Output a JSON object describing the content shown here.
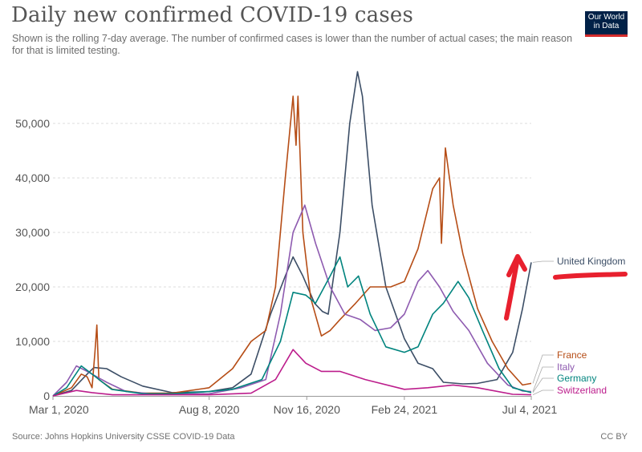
{
  "header": {
    "title": "Daily new confirmed COVID-19 cases",
    "subtitle": "Shown is the rolling 7-day average. The number of confirmed cases is lower than the number of actual cases; the main reason for that is limited testing.",
    "logo_line1": "Our World",
    "logo_line2": "in Data",
    "logo_color": "#002147"
  },
  "footer": {
    "source": "Source: Johns Hopkins University CSSE COVID-19 Data",
    "license": "CC BY"
  },
  "annotation": {
    "color": "#e8202e",
    "description": "red-arrow-pointing-to-united-kingdom"
  },
  "chart_data": {
    "type": "line",
    "title": "Daily new confirmed COVID-19 cases",
    "xlabel": "",
    "ylabel": "",
    "ylim": [
      0,
      60000
    ],
    "grid": true,
    "x_ticks": [
      "Mar 1, 2020",
      "Aug 8, 2020",
      "Nov 16, 2020",
      "Feb 24, 2021",
      "Jul 4, 2021"
    ],
    "y_ticks": [
      "0",
      "10,000",
      "20,000",
      "30,000",
      "40,000",
      "50,000"
    ],
    "y_tick_values": [
      0,
      10000,
      20000,
      30000,
      40000,
      50000
    ],
    "x_start": "2020-03-01",
    "x_end": "2021-07-04",
    "series": [
      {
        "name": "United Kingdom",
        "color": "#3c4e66",
        "points": [
          [
            "2020-03-01",
            0
          ],
          [
            "2020-03-20",
            1000
          ],
          [
            "2020-04-05",
            4000
          ],
          [
            "2020-04-12",
            5200
          ],
          [
            "2020-04-25",
            5000
          ],
          [
            "2020-05-10",
            3500
          ],
          [
            "2020-06-01",
            1800
          ],
          [
            "2020-07-01",
            600
          ],
          [
            "2020-08-08",
            800
          ],
          [
            "2020-09-01",
            1500
          ],
          [
            "2020-09-20",
            4000
          ],
          [
            "2020-10-10",
            15000
          ],
          [
            "2020-10-25",
            22000
          ],
          [
            "2020-11-02",
            25500
          ],
          [
            "2020-11-12",
            22000
          ],
          [
            "2020-11-24",
            17000
          ],
          [
            "2020-12-02",
            15500
          ],
          [
            "2020-12-08",
            15000
          ],
          [
            "2020-12-20",
            30000
          ],
          [
            "2020-12-30",
            50000
          ],
          [
            "2021-01-07",
            59500
          ],
          [
            "2021-01-12",
            55000
          ],
          [
            "2021-01-22",
            35000
          ],
          [
            "2021-02-05",
            20000
          ],
          [
            "2021-02-24",
            10500
          ],
          [
            "2021-03-10",
            6000
          ],
          [
            "2021-03-25",
            5000
          ],
          [
            "2021-04-05",
            2500
          ],
          [
            "2021-04-25",
            2200
          ],
          [
            "2021-05-10",
            2300
          ],
          [
            "2021-05-30",
            3000
          ],
          [
            "2021-06-15",
            8000
          ],
          [
            "2021-06-25",
            16000
          ],
          [
            "2021-07-04",
            24500
          ]
        ]
      },
      {
        "name": "France",
        "color": "#b64d16",
        "points": [
          [
            "2020-03-01",
            0
          ],
          [
            "2020-03-20",
            1500
          ],
          [
            "2020-03-30",
            4000
          ],
          [
            "2020-04-05",
            3500
          ],
          [
            "2020-04-10",
            1500
          ],
          [
            "2020-04-13",
            8000
          ],
          [
            "2020-04-15",
            13000
          ],
          [
            "2020-04-17",
            3000
          ],
          [
            "2020-05-01",
            1200
          ],
          [
            "2020-06-01",
            500
          ],
          [
            "2020-07-01",
            500
          ],
          [
            "2020-08-08",
            1500
          ],
          [
            "2020-09-01",
            5000
          ],
          [
            "2020-09-20",
            10000
          ],
          [
            "2020-10-05",
            12000
          ],
          [
            "2020-10-15",
            20000
          ],
          [
            "2020-10-25",
            40000
          ],
          [
            "2020-11-02",
            55000
          ],
          [
            "2020-11-05",
            46000
          ],
          [
            "2020-11-07",
            55000
          ],
          [
            "2020-11-12",
            30000
          ],
          [
            "2020-11-20",
            18000
          ],
          [
            "2020-12-01",
            11000
          ],
          [
            "2020-12-10",
            12000
          ],
          [
            "2020-12-20",
            14000
          ],
          [
            "2021-01-05",
            17000
          ],
          [
            "2021-01-20",
            20000
          ],
          [
            "2021-02-10",
            20000
          ],
          [
            "2021-02-24",
            21000
          ],
          [
            "2021-03-10",
            27000
          ],
          [
            "2021-03-25",
            38000
          ],
          [
            "2021-04-01",
            40000
          ],
          [
            "2021-04-03",
            28000
          ],
          [
            "2021-04-07",
            45500
          ],
          [
            "2021-04-15",
            35000
          ],
          [
            "2021-04-25",
            26000
          ],
          [
            "2021-05-10",
            16000
          ],
          [
            "2021-05-25",
            10000
          ],
          [
            "2021-06-10",
            5000
          ],
          [
            "2021-06-25",
            2000
          ],
          [
            "2021-07-04",
            2300
          ]
        ]
      },
      {
        "name": "Italy",
        "color": "#8e5bb0",
        "points": [
          [
            "2020-03-01",
            0
          ],
          [
            "2020-03-15",
            2500
          ],
          [
            "2020-03-25",
            5500
          ],
          [
            "2020-04-05",
            4500
          ],
          [
            "2020-04-25",
            2500
          ],
          [
            "2020-05-15",
            800
          ],
          [
            "2020-06-15",
            300
          ],
          [
            "2020-08-08",
            400
          ],
          [
            "2020-09-10",
            1500
          ],
          [
            "2020-10-05",
            3000
          ],
          [
            "2020-10-20",
            15000
          ],
          [
            "2020-11-02",
            30000
          ],
          [
            "2020-11-14",
            35000
          ],
          [
            "2020-11-25",
            28000
          ],
          [
            "2020-12-10",
            20000
          ],
          [
            "2020-12-25",
            15000
          ],
          [
            "2021-01-10",
            14000
          ],
          [
            "2021-01-25",
            12000
          ],
          [
            "2021-02-10",
            12500
          ],
          [
            "2021-02-24",
            15000
          ],
          [
            "2021-03-10",
            21000
          ],
          [
            "2021-03-20",
            23000
          ],
          [
            "2021-04-01",
            20000
          ],
          [
            "2021-04-15",
            15500
          ],
          [
            "2021-05-01",
            12000
          ],
          [
            "2021-05-20",
            6000
          ],
          [
            "2021-06-10",
            2000
          ],
          [
            "2021-06-25",
            900
          ],
          [
            "2021-07-04",
            800
          ]
        ]
      },
      {
        "name": "Germany",
        "color": "#00847e",
        "points": [
          [
            "2020-03-01",
            0
          ],
          [
            "2020-03-15",
            1500
          ],
          [
            "2020-03-30",
            5500
          ],
          [
            "2020-04-10",
            4000
          ],
          [
            "2020-04-30",
            1200
          ],
          [
            "2020-06-01",
            400
          ],
          [
            "2020-07-01",
            400
          ],
          [
            "2020-08-08",
            800
          ],
          [
            "2020-09-01",
            1200
          ],
          [
            "2020-10-01",
            3000
          ],
          [
            "2020-10-20",
            10000
          ],
          [
            "2020-11-02",
            19000
          ],
          [
            "2020-11-15",
            18500
          ],
          [
            "2020-11-25",
            17000
          ],
          [
            "2020-12-10",
            22000
          ],
          [
            "2020-12-20",
            25500
          ],
          [
            "2020-12-28",
            20000
          ],
          [
            "2021-01-08",
            22000
          ],
          [
            "2021-01-20",
            15000
          ],
          [
            "2021-02-05",
            9000
          ],
          [
            "2021-02-24",
            8000
          ],
          [
            "2021-03-10",
            9000
          ],
          [
            "2021-03-25",
            15000
          ],
          [
            "2021-04-05",
            17000
          ],
          [
            "2021-04-20",
            21000
          ],
          [
            "2021-05-01",
            18000
          ],
          [
            "2021-05-15",
            12000
          ],
          [
            "2021-06-01",
            5000
          ],
          [
            "2021-06-15",
            1500
          ],
          [
            "2021-07-04",
            600
          ]
        ]
      },
      {
        "name": "Switzerland",
        "color": "#bc1d8c",
        "points": [
          [
            "2020-03-01",
            0
          ],
          [
            "2020-03-25",
            1000
          ],
          [
            "2020-04-10",
            600
          ],
          [
            "2020-05-01",
            200
          ],
          [
            "2020-08-08",
            200
          ],
          [
            "2020-09-20",
            500
          ],
          [
            "2020-10-15",
            3000
          ],
          [
            "2020-11-02",
            8500
          ],
          [
            "2020-11-15",
            6000
          ],
          [
            "2020-12-01",
            4500
          ],
          [
            "2020-12-20",
            4500
          ],
          [
            "2021-01-15",
            3000
          ],
          [
            "2021-02-24",
            1200
          ],
          [
            "2021-03-20",
            1500
          ],
          [
            "2021-04-15",
            2000
          ],
          [
            "2021-05-10",
            1500
          ],
          [
            "2021-06-15",
            300
          ],
          [
            "2021-07-04",
            200
          ]
        ]
      }
    ]
  }
}
